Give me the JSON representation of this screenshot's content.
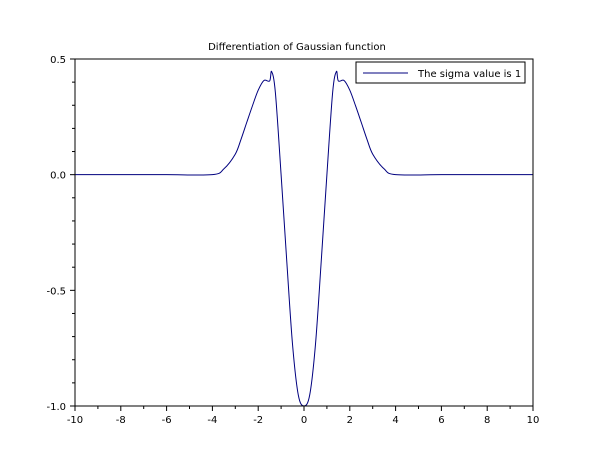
{
  "chart_data": {
    "type": "line",
    "title": "Differentiation of Gaussian function",
    "xlabel": "",
    "ylabel": "",
    "xlim": [
      -10,
      10
    ],
    "ylim": [
      -1.0,
      0.5
    ],
    "grid": false,
    "legend_position": "top-right",
    "x_ticks": [
      -10,
      -8,
      -6,
      -4,
      -2,
      0,
      2,
      4,
      6,
      8,
      10
    ],
    "x_tick_labels": [
      "-10",
      "-8",
      "-6",
      "-4",
      "-2",
      "0",
      "2",
      "4",
      "6",
      "8",
      "10"
    ],
    "y_ticks": [
      -1.0,
      -0.5,
      0.0,
      0.5
    ],
    "y_tick_labels": [
      "-1.0",
      "-0.5",
      "0.0",
      "0.5"
    ],
    "series": [
      {
        "name": "The sigma value is 1",
        "color": "#00007f",
        "x": [
          -10,
          -8,
          -6,
          -4,
          -3.5,
          -3,
          -2.75,
          -2.5,
          -2.25,
          -2,
          -1.75,
          -1.5,
          -1.4142,
          -1.25,
          -1,
          -0.75,
          -0.5,
          -0.25,
          0,
          0.25,
          0.5,
          0.75,
          1,
          1.25,
          1.4142,
          1.5,
          1.75,
          2,
          2.25,
          2.5,
          2.75,
          3,
          3.5,
          4,
          6,
          8,
          10
        ],
        "y": [
          0.0,
          0.0,
          0.0,
          0.0,
          0.025,
          0.089,
          0.153,
          0.226,
          0.298,
          0.365,
          0.407,
          0.405,
          0.446,
          0.355,
          0.0,
          -0.378,
          -0.735,
          -0.952,
          -1.0,
          -0.952,
          -0.735,
          -0.378,
          0.0,
          0.355,
          0.446,
          0.405,
          0.407,
          0.365,
          0.298,
          0.226,
          0.153,
          0.089,
          0.025,
          0.0,
          0.0,
          0.0,
          0.0
        ]
      }
    ]
  }
}
